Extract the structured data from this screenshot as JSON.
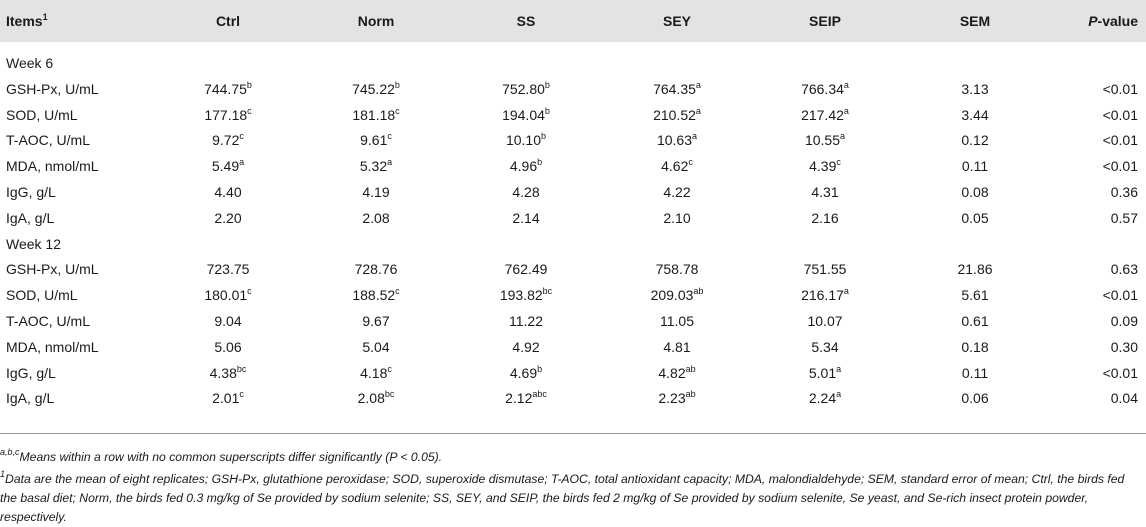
{
  "header": {
    "items": "Items",
    "items_sup": "1",
    "ctrl": "Ctrl",
    "norm": "Norm",
    "ss": "SS",
    "sey": "SEY",
    "seip": "SEIP",
    "sem": "SEM",
    "p_italic": "P",
    "p_rest": "-value"
  },
  "sections": [
    {
      "label": "Week 6",
      "rows": [
        {
          "item": "GSH-Px, U/mL",
          "cells": [
            [
              "744.75",
              "b"
            ],
            [
              "745.22",
              "b"
            ],
            [
              "752.80",
              "b"
            ],
            [
              "764.35",
              "a"
            ],
            [
              "766.34",
              "a"
            ]
          ],
          "sem": "3.13",
          "p": "<0.01"
        },
        {
          "item": "SOD, U/mL",
          "cells": [
            [
              "177.18",
              "c"
            ],
            [
              "181.18",
              "c"
            ],
            [
              "194.04",
              "b"
            ],
            [
              "210.52",
              "a"
            ],
            [
              "217.42",
              "a"
            ]
          ],
          "sem": "3.44",
          "p": "<0.01"
        },
        {
          "item": "T-AOC, U/mL",
          "cells": [
            [
              "9.72",
              "c"
            ],
            [
              "9.61",
              "c"
            ],
            [
              "10.10",
              "b"
            ],
            [
              "10.63",
              "a"
            ],
            [
              "10.55",
              "a"
            ]
          ],
          "sem": "0.12",
          "p": "<0.01"
        },
        {
          "item": "MDA, nmol/mL",
          "cells": [
            [
              "5.49",
              "a"
            ],
            [
              "5.32",
              "a"
            ],
            [
              "4.96",
              "b"
            ],
            [
              "4.62",
              "c"
            ],
            [
              "4.39",
              "c"
            ]
          ],
          "sem": "0.11",
          "p": "<0.01"
        },
        {
          "item": "IgG, g/L",
          "cells": [
            [
              "4.40",
              ""
            ],
            [
              "4.19",
              ""
            ],
            [
              "4.28",
              ""
            ],
            [
              "4.22",
              ""
            ],
            [
              "4.31",
              ""
            ]
          ],
          "sem": "0.08",
          "p": "0.36"
        },
        {
          "item": "IgA, g/L",
          "cells": [
            [
              "2.20",
              ""
            ],
            [
              "2.08",
              ""
            ],
            [
              "2.14",
              ""
            ],
            [
              "2.10",
              ""
            ],
            [
              "2.16",
              ""
            ]
          ],
          "sem": "0.05",
          "p": "0.57"
        }
      ]
    },
    {
      "label": "Week 12",
      "rows": [
        {
          "item": "GSH-Px, U/mL",
          "cells": [
            [
              "723.75",
              ""
            ],
            [
              "728.76",
              ""
            ],
            [
              "762.49",
              ""
            ],
            [
              "758.78",
              ""
            ],
            [
              "751.55",
              ""
            ]
          ],
          "sem": "21.86",
          "p": "0.63"
        },
        {
          "item": "SOD, U/mL",
          "cells": [
            [
              "180.01",
              "c"
            ],
            [
              "188.52",
              "c"
            ],
            [
              "193.82",
              "bc"
            ],
            [
              "209.03",
              "ab"
            ],
            [
              "216.17",
              "a"
            ]
          ],
          "sem": "5.61",
          "p": "<0.01"
        },
        {
          "item": "T-AOC, U/mL",
          "cells": [
            [
              "9.04",
              ""
            ],
            [
              "9.67",
              ""
            ],
            [
              "11.22",
              ""
            ],
            [
              "11.05",
              ""
            ],
            [
              "10.07",
              ""
            ]
          ],
          "sem": "0.61",
          "p": "0.09"
        },
        {
          "item": "MDA, nmol/mL",
          "cells": [
            [
              "5.06",
              ""
            ],
            [
              "5.04",
              ""
            ],
            [
              "4.92",
              ""
            ],
            [
              "4.81",
              ""
            ],
            [
              "5.34",
              ""
            ]
          ],
          "sem": "0.18",
          "p": "0.30"
        },
        {
          "item": "IgG, g/L",
          "cells": [
            [
              "4.38",
              "bc"
            ],
            [
              "4.18",
              "c"
            ],
            [
              "4.69",
              "b"
            ],
            [
              "4.82",
              "ab"
            ],
            [
              "5.01",
              "a"
            ]
          ],
          "sem": "0.11",
          "p": "<0.01"
        },
        {
          "item": "IgA, g/L",
          "cells": [
            [
              "2.01",
              "c"
            ],
            [
              "2.08",
              "bc"
            ],
            [
              "2.12",
              "abc"
            ],
            [
              "2.23",
              "ab"
            ],
            [
              "2.24",
              "a"
            ]
          ],
          "sem": "0.06",
          "p": "0.04"
        }
      ]
    }
  ],
  "footnotes": {
    "sup1": "a,b,c",
    "note1": "Means within a row with no common superscripts differ significantly (P < 0.05).",
    "sup2": "1",
    "note2": "Data are the mean of eight replicates; GSH-Px, glutathione peroxidase; SOD, superoxide dismutase; T-AOC, total antioxidant capacity; MDA, malondialdehyde; SEM, standard error of mean; Ctrl, the birds fed the basal diet; Norm, the birds fed 0.3 mg/kg of Se provided by sodium selenite; SS, SEY, and SEIP, the birds fed 2 mg/kg of Se provided by sodium selenite, Se yeast, and Se-rich insect protein powder, respectively."
  }
}
